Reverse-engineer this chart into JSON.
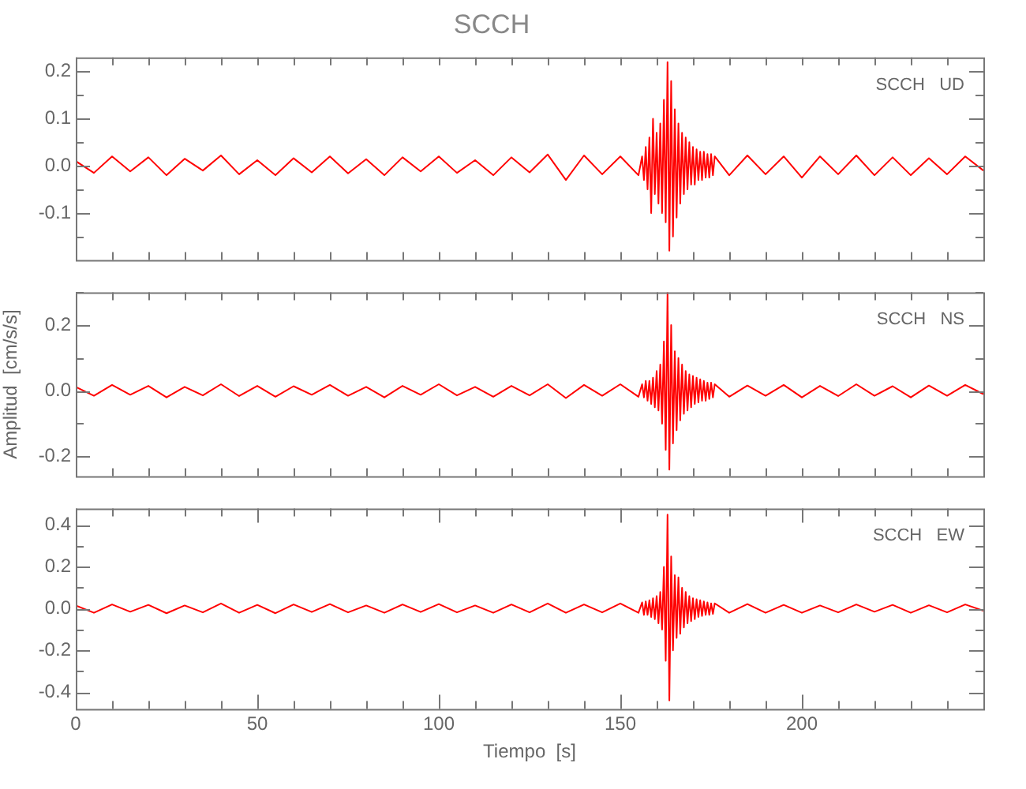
{
  "chart_data": [
    {
      "type": "line",
      "title": "SCCH",
      "annotations": [
        "SCCH   UD"
      ],
      "tick_labels": "y",
      "xlim": [
        0,
        250
      ],
      "xticks": [
        0,
        {
          "value": 10,
          "label": null
        },
        {
          "value": 20,
          "label": null
        },
        {
          "value": 30,
          "label": null
        },
        {
          "value": 40,
          "label": null
        },
        {
          "value": 50,
          "label": null
        },
        {
          "value": 60,
          "label": null
        },
        {
          "value": 70,
          "label": null
        },
        {
          "value": 80,
          "label": null
        },
        {
          "value": 90,
          "label": null
        },
        {
          "value": 100,
          "label": null
        },
        {
          "value": 110,
          "label": null
        },
        {
          "value": 120,
          "label": null
        },
        {
          "value": 130,
          "label": null
        },
        {
          "value": 140,
          "label": null
        },
        {
          "value": 150,
          "label": null
        },
        {
          "value": 160,
          "label": null
        },
        {
          "value": 170,
          "label": null
        },
        {
          "value": 180,
          "label": null
        },
        {
          "value": 190,
          "label": null
        },
        {
          "value": 200,
          "label": null
        },
        {
          "value": 210,
          "label": null
        },
        {
          "value": 220,
          "label": null
        },
        {
          "value": 230,
          "label": null
        },
        {
          "value": 240,
          "label": null
        }
      ],
      "ylim": [
        -0.2,
        0.23
      ],
      "yticks": [
        {
          "value": -0.15,
          "label": null
        },
        -0.1,
        {
          "value": -0.05,
          "label": null
        },
        {
          "value": 0,
          "label": "0.0"
        },
        {
          "value": 0.05,
          "label": null
        },
        0.1,
        {
          "value": 0.15,
          "label": null
        },
        0.2
      ],
      "x": [
        0,
        5,
        10,
        15,
        20,
        25,
        30,
        35,
        40,
        45,
        50,
        55,
        60,
        65,
        70,
        75,
        80,
        85,
        90,
        95,
        100,
        105,
        110,
        115,
        120,
        125,
        130,
        135,
        140,
        145,
        150,
        155,
        156,
        156.5,
        157,
        157.5,
        158,
        158.5,
        159,
        159.5,
        160,
        160.5,
        161,
        161.5,
        162,
        162.5,
        163,
        163.5,
        164,
        164.5,
        165,
        165.5,
        166,
        166.5,
        167,
        167.5,
        168,
        168.5,
        169,
        169.5,
        170,
        170.5,
        171,
        171.5,
        172,
        172.5,
        173,
        173.5,
        174,
        174.5,
        175,
        175.5,
        176,
        180,
        185,
        190,
        195,
        200,
        205,
        210,
        215,
        220,
        225,
        230,
        235,
        240,
        245,
        250
      ],
      "series": [
        {
          "color": "#ff0000",
          "values": [
            0.01,
            -0.015,
            0.02,
            -0.012,
            0.018,
            -0.02,
            0.015,
            -0.01,
            0.022,
            -0.018,
            0.012,
            -0.02,
            0.016,
            -0.014,
            0.02,
            -0.016,
            0.014,
            -0.02,
            0.018,
            -0.012,
            0.02,
            -0.015,
            0.012,
            -0.02,
            0.018,
            -0.014,
            0.024,
            -0.03,
            0.022,
            -0.018,
            0.02,
            -0.02,
            0.02,
            -0.03,
            0.04,
            -0.05,
            0.06,
            -0.1,
            0.1,
            -0.06,
            0.07,
            -0.08,
            0.09,
            -0.1,
            0.14,
            -0.12,
            0.22,
            -0.18,
            0.18,
            -0.15,
            0.12,
            -0.11,
            0.09,
            -0.08,
            0.07,
            -0.06,
            0.06,
            -0.05,
            0.05,
            -0.04,
            0.04,
            -0.04,
            0.035,
            -0.03,
            0.03,
            -0.03,
            0.03,
            -0.025,
            0.025,
            -0.025,
            0.025,
            -0.02,
            0.02,
            -0.02,
            0.022,
            -0.018,
            0.02,
            -0.025,
            0.02,
            -0.018,
            0.022,
            -0.02,
            0.018,
            -0.02,
            0.016,
            -0.018,
            0.02,
            -0.01
          ]
        }
      ]
    },
    {
      "type": "line",
      "ylabel": "Amplitud  [cm/s/s]",
      "annotations": [
        "SCCH   NS"
      ],
      "tick_labels": "y",
      "xlim": [
        0,
        250
      ],
      "xticks": [
        0,
        {
          "value": 10,
          "label": null
        },
        {
          "value": 20,
          "label": null
        },
        {
          "value": 30,
          "label": null
        },
        {
          "value": 40,
          "label": null
        },
        {
          "value": 50,
          "label": null
        },
        {
          "value": 60,
          "label": null
        },
        {
          "value": 70,
          "label": null
        },
        {
          "value": 80,
          "label": null
        },
        {
          "value": 90,
          "label": null
        },
        {
          "value": 100,
          "label": null
        },
        {
          "value": 110,
          "label": null
        },
        {
          "value": 120,
          "label": null
        },
        {
          "value": 130,
          "label": null
        },
        {
          "value": 140,
          "label": null
        },
        {
          "value": 150,
          "label": null
        },
        {
          "value": 160,
          "label": null
        },
        {
          "value": 170,
          "label": null
        },
        {
          "value": 180,
          "label": null
        },
        {
          "value": 190,
          "label": null
        },
        {
          "value": 200,
          "label": null
        },
        {
          "value": 210,
          "label": null
        },
        {
          "value": 220,
          "label": null
        },
        {
          "value": 230,
          "label": null
        },
        {
          "value": 240,
          "label": null
        }
      ],
      "ylim": [
        -0.26,
        0.3
      ],
      "yticks": [
        -0.2,
        {
          "value": -0.1,
          "label": null
        },
        {
          "value": 0,
          "label": "0.0"
        },
        {
          "value": 0.1,
          "label": null
        },
        0.2,
        {
          "value": 0.3,
          "label": null
        }
      ],
      "x": [
        0,
        5,
        10,
        15,
        20,
        25,
        30,
        35,
        40,
        45,
        50,
        55,
        60,
        65,
        70,
        75,
        80,
        85,
        90,
        95,
        100,
        105,
        110,
        115,
        120,
        125,
        130,
        135,
        140,
        145,
        150,
        155,
        156,
        156.5,
        157,
        157.5,
        158,
        158.5,
        159,
        159.5,
        160,
        160.5,
        161,
        161.5,
        162,
        162.5,
        163,
        163.5,
        164,
        164.5,
        165,
        165.5,
        166,
        166.5,
        167,
        167.5,
        168,
        168.5,
        169,
        169.5,
        170,
        170.5,
        171,
        171.5,
        172,
        172.5,
        173,
        173.5,
        174,
        174.5,
        175,
        175.5,
        176,
        180,
        185,
        190,
        195,
        200,
        205,
        210,
        215,
        220,
        225,
        230,
        235,
        240,
        245,
        250
      ],
      "series": [
        {
          "color": "#ff0000",
          "values": [
            0.012,
            -0.015,
            0.018,
            -0.012,
            0.015,
            -0.02,
            0.012,
            -0.014,
            0.02,
            -0.016,
            0.015,
            -0.018,
            0.014,
            -0.012,
            0.018,
            -0.015,
            0.012,
            -0.02,
            0.015,
            -0.012,
            0.02,
            -0.014,
            0.012,
            -0.018,
            0.015,
            -0.014,
            0.02,
            -0.022,
            0.018,
            -0.015,
            0.02,
            -0.018,
            0.02,
            -0.02,
            0.03,
            -0.03,
            0.03,
            -0.04,
            0.04,
            -0.05,
            0.06,
            -0.06,
            0.08,
            -0.1,
            0.15,
            -0.18,
            0.3,
            -0.24,
            0.2,
            -0.16,
            0.12,
            -0.12,
            0.1,
            -0.09,
            0.08,
            -0.07,
            0.06,
            -0.06,
            0.05,
            -0.05,
            0.045,
            -0.04,
            0.04,
            -0.035,
            0.035,
            -0.03,
            0.03,
            -0.03,
            0.025,
            -0.025,
            0.025,
            -0.02,
            0.02,
            -0.018,
            0.016,
            -0.015,
            0.018,
            -0.02,
            0.015,
            -0.016,
            0.02,
            -0.015,
            0.014,
            -0.02,
            0.016,
            -0.015,
            0.018,
            -0.01
          ]
        }
      ]
    },
    {
      "type": "line",
      "xlabel": "Tiempo  [s]",
      "annotations": [
        "SCCH   EW"
      ],
      "xlim": [
        0,
        250
      ],
      "xticks": [
        0,
        {
          "value": 10,
          "label": null
        },
        {
          "value": 20,
          "label": null
        },
        {
          "value": 30,
          "label": null
        },
        {
          "value": 40,
          "label": null
        },
        50,
        {
          "value": 60,
          "label": null
        },
        {
          "value": 70,
          "label": null
        },
        {
          "value": 80,
          "label": null
        },
        {
          "value": 90,
          "label": null
        },
        100,
        {
          "value": 110,
          "label": null
        },
        {
          "value": 120,
          "label": null
        },
        {
          "value": 130,
          "label": null
        },
        {
          "value": 140,
          "label": null
        },
        150,
        {
          "value": 160,
          "label": null
        },
        {
          "value": 170,
          "label": null
        },
        {
          "value": 180,
          "label": null
        },
        {
          "value": 190,
          "label": null
        },
        200,
        {
          "value": 210,
          "label": null
        },
        {
          "value": 220,
          "label": null
        },
        {
          "value": 230,
          "label": null
        },
        {
          "value": 240,
          "label": null
        }
      ],
      "ylim": [
        -0.48,
        0.48
      ],
      "yticks": [
        -0.4,
        {
          "value": -0.3,
          "label": null
        },
        -0.2,
        {
          "value": -0.1,
          "label": null
        },
        {
          "value": 0,
          "label": "0.0"
        },
        {
          "value": 0.1,
          "label": null
        },
        0.2,
        {
          "value": 0.3,
          "label": null
        },
        0.4
      ],
      "x": [
        0,
        5,
        10,
        15,
        20,
        25,
        30,
        35,
        40,
        45,
        50,
        55,
        60,
        65,
        70,
        75,
        80,
        85,
        90,
        95,
        100,
        105,
        110,
        115,
        120,
        125,
        130,
        135,
        140,
        145,
        150,
        155,
        156,
        156.5,
        157,
        157.5,
        158,
        158.5,
        159,
        159.5,
        160,
        160.5,
        161,
        161.5,
        162,
        162.5,
        163,
        163.5,
        164,
        164.5,
        165,
        165.5,
        166,
        166.5,
        167,
        167.5,
        168,
        168.5,
        169,
        169.5,
        170,
        170.5,
        171,
        171.5,
        172,
        172.5,
        173,
        173.5,
        174,
        174.5,
        175,
        175.5,
        176,
        180,
        185,
        190,
        195,
        200,
        205,
        210,
        215,
        220,
        225,
        230,
        235,
        240,
        245,
        250
      ],
      "series": [
        {
          "color": "#ff0000",
          "values": [
            0.015,
            -0.02,
            0.02,
            -0.015,
            0.018,
            -0.022,
            0.015,
            -0.018,
            0.025,
            -0.02,
            0.018,
            -0.022,
            0.02,
            -0.016,
            0.022,
            -0.018,
            0.015,
            -0.02,
            0.02,
            -0.016,
            0.022,
            -0.018,
            0.015,
            -0.02,
            0.02,
            -0.018,
            0.025,
            -0.02,
            0.02,
            -0.018,
            0.025,
            -0.02,
            0.03,
            -0.03,
            0.035,
            -0.03,
            0.04,
            -0.04,
            0.05,
            -0.05,
            0.06,
            -0.07,
            0.08,
            -0.1,
            0.2,
            -0.25,
            0.45,
            -0.44,
            0.25,
            -0.2,
            0.16,
            -0.14,
            0.15,
            -0.12,
            0.1,
            -0.09,
            0.08,
            -0.07,
            0.06,
            -0.06,
            0.05,
            -0.05,
            0.045,
            -0.04,
            0.04,
            -0.035,
            0.035,
            -0.03,
            0.03,
            -0.03,
            0.025,
            -0.025,
            0.025,
            -0.02,
            0.022,
            -0.02,
            0.018,
            -0.02,
            0.015,
            -0.018,
            0.02,
            -0.015,
            0.018,
            -0.02,
            0.016,
            -0.018,
            0.02,
            -0.01
          ]
        }
      ]
    }
  ]
}
